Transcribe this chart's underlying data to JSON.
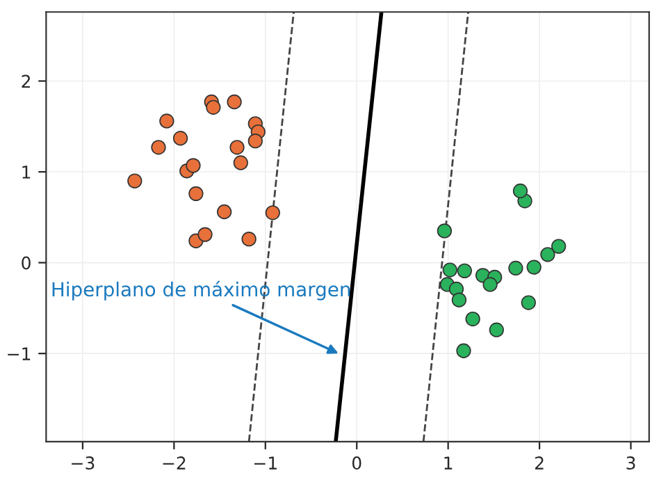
{
  "chart_data": {
    "type": "scatter",
    "xlim": [
      -3.4,
      3.2
    ],
    "ylim": [
      -1.97,
      2.76
    ],
    "xticks": [
      {
        "value": -3,
        "label": "−3"
      },
      {
        "value": -2,
        "label": "−2"
      },
      {
        "value": -1,
        "label": "−1"
      },
      0,
      1,
      2,
      3
    ],
    "yticks": [
      {
        "value": -1,
        "label": "−1"
      },
      0,
      1,
      2
    ],
    "grid": true,
    "annotations": [
      {
        "text": "Hiperplano de máximo margen",
        "x": -0.2,
        "y": -1.0
      }
    ],
    "series": [
      {
        "marker": "circle",
        "color": "#e8703a",
        "x": [
          -2.43,
          -2.08,
          -2.17,
          -1.93,
          -1.86,
          -1.79,
          -1.76,
          -1.59,
          -1.57,
          -1.34,
          -1.31,
          -1.27,
          -1.11,
          -1.08,
          -1.11,
          -1.45,
          -0.92,
          -1.76,
          -1.66,
          -1.18
        ],
        "values": [
          0.9,
          1.56,
          1.27,
          1.37,
          1.01,
          1.07,
          0.76,
          1.77,
          1.71,
          1.77,
          1.27,
          1.1,
          1.53,
          1.44,
          1.34,
          0.56,
          0.55,
          0.24,
          0.31,
          0.26
        ]
      },
      {
        "marker": "circle",
        "color": "#2ab25c",
        "x": [
          0.96,
          1.84,
          1.79,
          1.02,
          1.18,
          0.99,
          1.09,
          1.12,
          1.38,
          1.51,
          1.46,
          1.27,
          1.53,
          1.17,
          1.74,
          1.94,
          1.88,
          2.09,
          2.21
        ],
        "values": [
          0.35,
          0.68,
          0.79,
          -0.08,
          -0.09,
          -0.24,
          -0.29,
          -0.41,
          -0.14,
          -0.16,
          -0.24,
          -0.62,
          -0.74,
          -0.97,
          -0.06,
          -0.05,
          -0.44,
          0.09,
          0.18
        ]
      },
      {
        "type": "line",
        "color": "#000000",
        "line_style": "solid",
        "x": [
          -0.23,
          0.27
        ],
        "values": [
          -1.97,
          2.76
        ]
      },
      {
        "type": "line",
        "color": "#444444",
        "line_style": "dashed",
        "x": [
          -1.18,
          -0.69
        ],
        "values": [
          -1.97,
          2.76
        ]
      },
      {
        "type": "line",
        "color": "#444444",
        "line_style": "dashed",
        "x": [
          0.73,
          1.22
        ],
        "values": [
          -1.97,
          2.76
        ]
      }
    ]
  }
}
